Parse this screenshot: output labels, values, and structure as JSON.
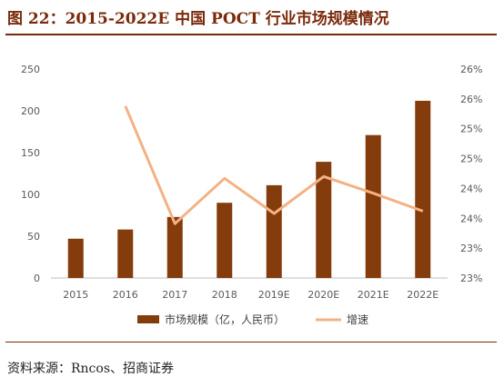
{
  "figure": {
    "title": "图 22：2015-2022E 中国 POCT 行业市场规模情况",
    "source": "资料来源：Rncos、招商证券"
  },
  "colors": {
    "bar": "#843c0c",
    "line": "#f4b183",
    "axis": "#bfbfbf",
    "accent": "#7a2a0b"
  },
  "chart_data": {
    "type": "bar",
    "categories": [
      "2015",
      "2016",
      "2017",
      "2018",
      "2019E",
      "2020E",
      "2021E",
      "2022E"
    ],
    "series": [
      {
        "name": "市场规模（亿，人民币）",
        "type": "bar",
        "axis": "left",
        "values": [
          47,
          58,
          73,
          90,
          111,
          139,
          171,
          212
        ]
      },
      {
        "name": "增速",
        "type": "line",
        "axis": "right",
        "values": [
          null,
          25.88,
          23.91,
          24.67,
          24.08,
          24.7,
          24.42,
          24.12
        ]
      }
    ],
    "yLeft": {
      "ticks": [
        "0",
        "50",
        "100",
        "150",
        "200",
        "250"
      ],
      "range": [
        0,
        250
      ]
    },
    "yRight": {
      "ticks": [
        "23%",
        "23%",
        "24%",
        "24%",
        "25%",
        "25%",
        "26%",
        "26%"
      ],
      "range": [
        23.0,
        26.5
      ]
    },
    "legend": {
      "position": "bottom"
    },
    "grid": false
  }
}
